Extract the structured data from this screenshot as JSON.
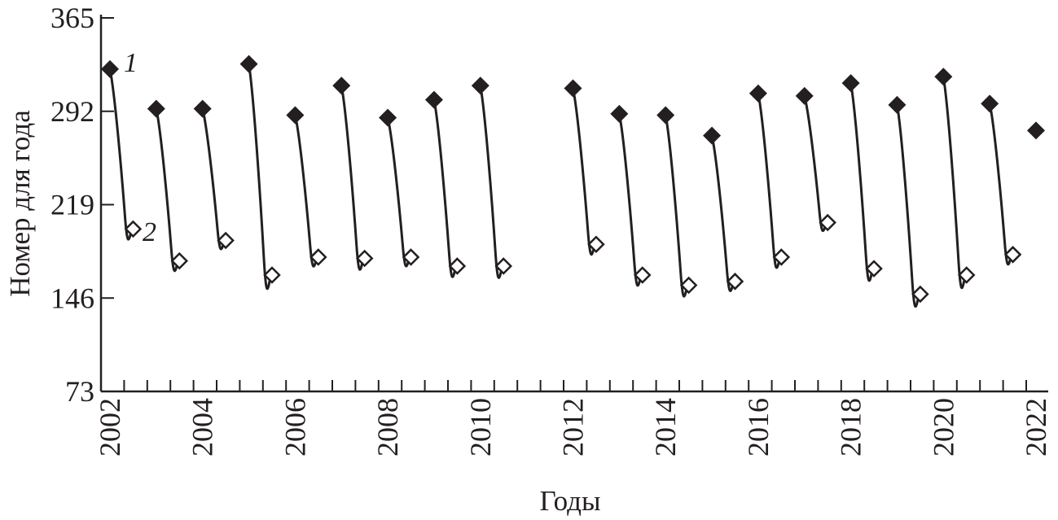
{
  "chart_data": {
    "type": "line",
    "title": "",
    "xlabel": "Годы",
    "ylabel": "Номер для года",
    "xlim": [
      2001.8,
      2022.25
    ],
    "ylim": [
      73,
      365
    ],
    "yticks": [
      73,
      146,
      219,
      292,
      365
    ],
    "xticks": [
      2002,
      2004,
      2006,
      2008,
      2010,
      2012,
      2014,
      2016,
      2018,
      2020,
      2022
    ],
    "grid": false,
    "series": [
      {
        "name": "1",
        "marker": "filled-diamond",
        "x": [
          2002,
          2003,
          2004,
          2005,
          2006,
          2007,
          2008,
          2009,
          2010,
          2012,
          2013,
          2014,
          2015,
          2016,
          2017,
          2018,
          2019,
          2020,
          2021,
          2022
        ],
        "values": [
          325,
          294,
          294,
          329,
          289,
          312,
          287,
          301,
          312,
          310,
          290,
          289,
          273,
          306,
          304,
          314,
          297,
          319,
          298,
          277
        ]
      },
      {
        "name": "2",
        "marker": "open-diamond",
        "x": [
          2002.5,
          2003.5,
          2004.5,
          2005.5,
          2006.5,
          2007.5,
          2008.5,
          2009.5,
          2010.5,
          2012.5,
          2013.5,
          2014.5,
          2015.5,
          2016.5,
          2017.5,
          2018.5,
          2019.5,
          2020.5,
          2021.5
        ],
        "values": [
          200,
          175,
          191,
          164,
          178,
          177,
          178,
          171,
          171,
          188,
          164,
          156,
          159,
          178,
          205,
          169,
          149,
          164,
          180
        ]
      }
    ],
    "series_labels": [
      "1",
      "2"
    ],
    "colors": {
      "ink": "#231f20",
      "open_fill": "#ffffff"
    }
  }
}
